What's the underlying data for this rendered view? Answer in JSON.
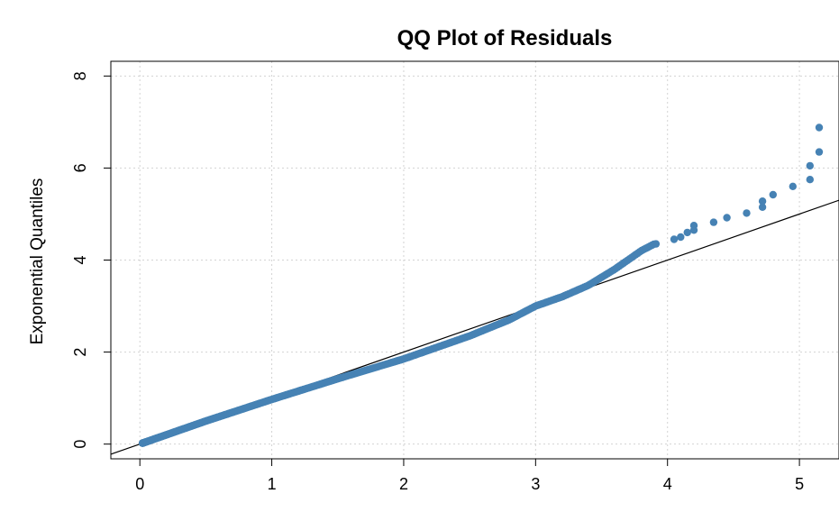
{
  "chart_data": {
    "type": "scatter",
    "title": "QQ Plot of Residuals",
    "xlabel": "",
    "ylabel": "Exponential Quantiles",
    "xlim": [
      -0.22,
      5.3
    ],
    "ylim": [
      -0.32,
      8.32
    ],
    "x_ticks": [
      0,
      1,
      2,
      3,
      4,
      5
    ],
    "y_ticks": [
      0,
      2,
      4,
      6,
      8
    ],
    "grid": true,
    "point_color": "#4682b4",
    "reference_line": {
      "intercept": 0,
      "slope": 1.0,
      "color": "#000000"
    },
    "curve_knots": [
      [
        0.0,
        0.0
      ],
      [
        0.5,
        0.5
      ],
      [
        1.0,
        0.97
      ],
      [
        1.5,
        1.42
      ],
      [
        2.0,
        1.85
      ],
      [
        2.5,
        2.35
      ],
      [
        2.8,
        2.7
      ],
      [
        3.0,
        3.0
      ],
      [
        3.2,
        3.2
      ],
      [
        3.4,
        3.45
      ],
      [
        3.6,
        3.8
      ],
      [
        3.8,
        4.2
      ],
      [
        3.9,
        4.35
      ]
    ],
    "n_points": 400,
    "tail_points": [
      [
        4.05,
        4.45
      ],
      [
        4.1,
        4.5
      ],
      [
        4.15,
        4.6
      ],
      [
        4.2,
        4.65
      ],
      [
        4.2,
        4.75
      ],
      [
        4.35,
        4.82
      ],
      [
        4.45,
        4.92
      ],
      [
        4.6,
        5.02
      ],
      [
        4.72,
        5.15
      ],
      [
        4.72,
        5.28
      ],
      [
        4.8,
        5.42
      ],
      [
        4.95,
        5.6
      ],
      [
        5.08,
        5.75
      ],
      [
        5.08,
        6.05
      ],
      [
        5.15,
        6.35
      ],
      [
        5.15,
        6.88
      ]
    ]
  }
}
